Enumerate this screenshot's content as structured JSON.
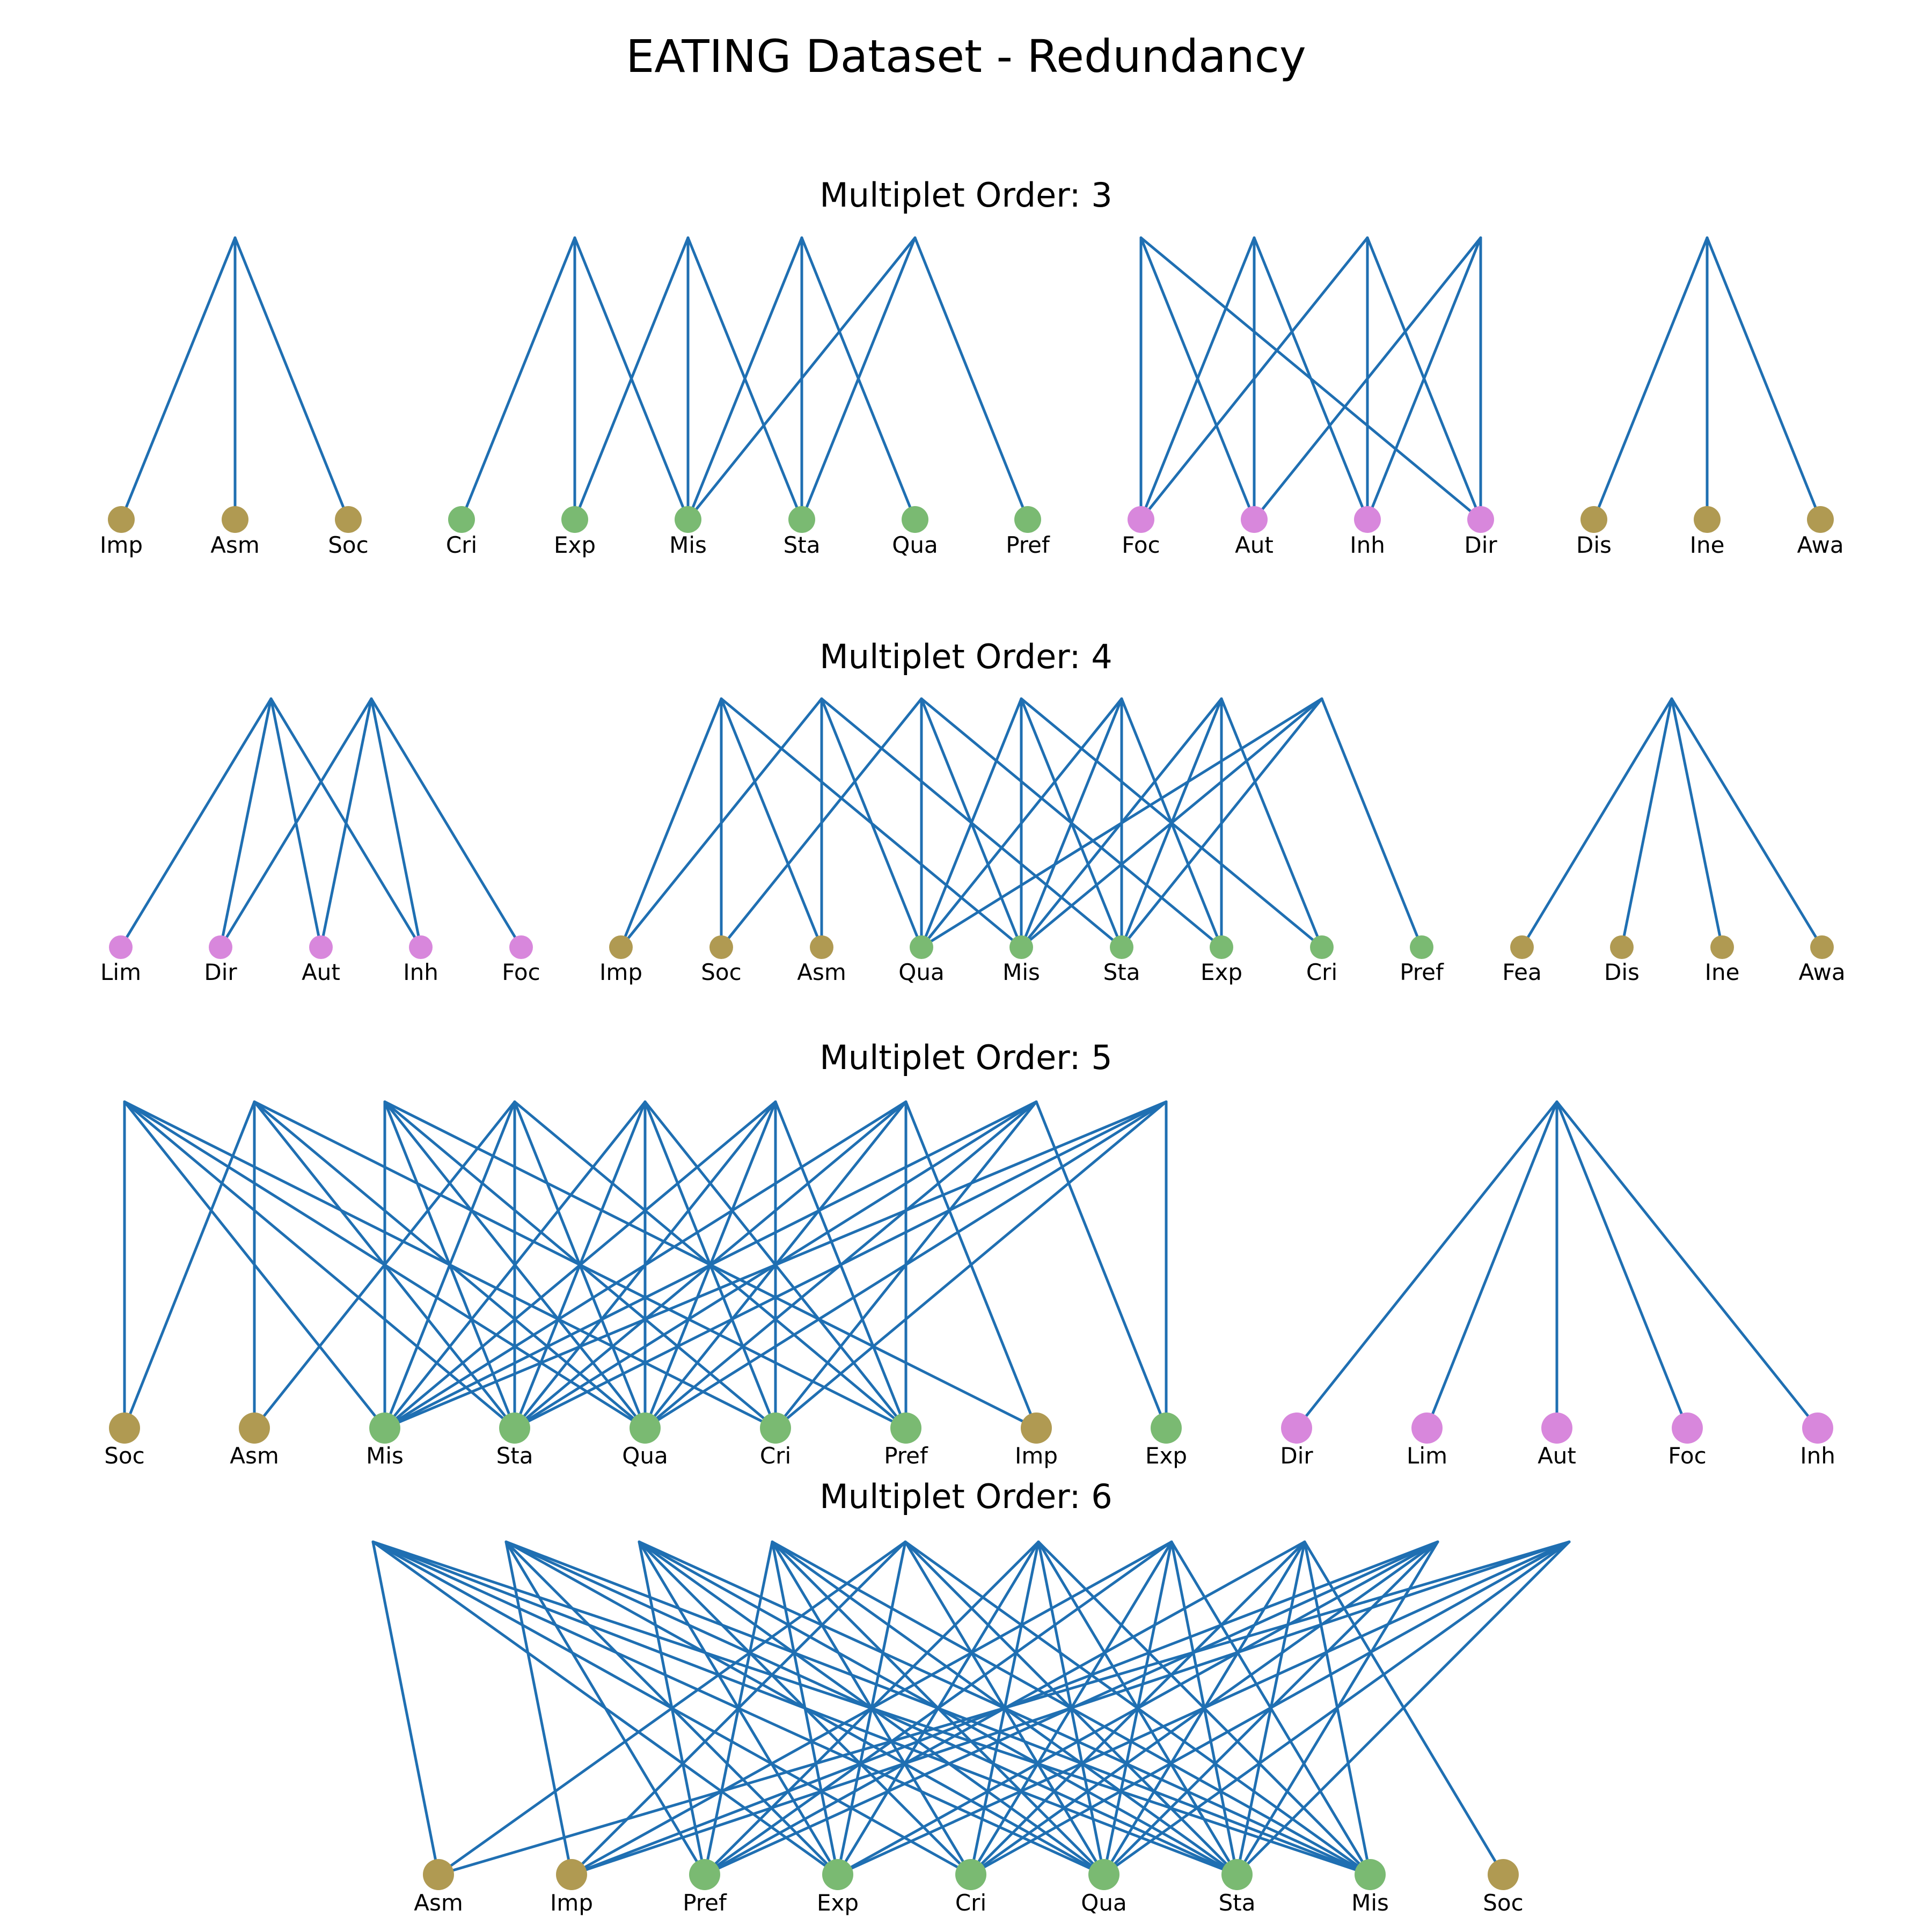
{
  "title": "EATING Dataset - Redundancy",
  "colors": {
    "edge": "#1f6fb2",
    "gold": "#b09a52",
    "green": "#7aba72",
    "pink": "#d887dc"
  },
  "panels": [
    {
      "title": "Multiplet Order: 3",
      "node_color_groups": [
        "gold",
        "gold",
        "gold",
        "green",
        "green",
        "green",
        "green",
        "green",
        "green",
        "pink",
        "pink",
        "pink",
        "pink",
        "gold",
        "gold",
        "gold"
      ],
      "nodes": [
        "Imp",
        "Asm",
        "Soc",
        "Cri",
        "Exp",
        "Mis",
        "Sta",
        "Qua",
        "Pref",
        "Foc",
        "Aut",
        "Inh",
        "Dir",
        "Dis",
        "Ine",
        "Awa"
      ],
      "multiplets": [
        [
          "Imp",
          "Asm",
          "Soc"
        ],
        [
          "Cri",
          "Exp",
          "Mis"
        ],
        [
          "Exp",
          "Mis",
          "Sta"
        ],
        [
          "Mis",
          "Sta",
          "Qua"
        ],
        [
          "Mis",
          "Sta",
          "Pref"
        ],
        [
          "Foc",
          "Aut",
          "Dir"
        ],
        [
          "Foc",
          "Aut",
          "Inh"
        ],
        [
          "Foc",
          "Inh",
          "Dir"
        ],
        [
          "Aut",
          "Inh",
          "Dir"
        ],
        [
          "Dis",
          "Ine",
          "Awa"
        ]
      ]
    },
    {
      "title": "Multiplet Order: 4",
      "node_color_groups": [
        "pink",
        "pink",
        "pink",
        "pink",
        "pink",
        "gold",
        "gold",
        "gold",
        "green",
        "green",
        "green",
        "green",
        "green",
        "green",
        "gold",
        "gold",
        "gold",
        "gold"
      ],
      "nodes": [
        "Lim",
        "Dir",
        "Aut",
        "Inh",
        "Foc",
        "Imp",
        "Soc",
        "Asm",
        "Qua",
        "Mis",
        "Sta",
        "Exp",
        "Cri",
        "Pref",
        "Fea",
        "Dis",
        "Ine",
        "Awa"
      ],
      "multiplets": [
        [
          "Lim",
          "Dir",
          "Aut",
          "Inh"
        ],
        [
          "Dir",
          "Aut",
          "Inh",
          "Foc"
        ],
        [
          "Imp",
          "Soc",
          "Asm",
          "Mis"
        ],
        [
          "Imp",
          "Asm",
          "Qua",
          "Sta"
        ],
        [
          "Soc",
          "Qua",
          "Mis",
          "Exp"
        ],
        [
          "Qua",
          "Mis",
          "Sta",
          "Cri"
        ],
        [
          "Qua",
          "Mis",
          "Sta",
          "Exp"
        ],
        [
          "Mis",
          "Sta",
          "Exp",
          "Cri"
        ],
        [
          "Qua",
          "Mis",
          "Sta",
          "Pref"
        ],
        [
          "Fea",
          "Dis",
          "Ine",
          "Awa"
        ]
      ]
    },
    {
      "title": "Multiplet Order: 5",
      "node_color_groups": [
        "gold",
        "gold",
        "green",
        "green",
        "green",
        "green",
        "green",
        "gold",
        "green",
        "pink",
        "pink",
        "pink",
        "pink",
        "pink"
      ],
      "nodes": [
        "Soc",
        "Asm",
        "Mis",
        "Sta",
        "Qua",
        "Cri",
        "Pref",
        "Imp",
        "Exp",
        "Dir",
        "Lim",
        "Aut",
        "Foc",
        "Inh"
      ],
      "multiplets": [
        [
          "Soc",
          "Mis",
          "Sta",
          "Qua",
          "Cri"
        ],
        [
          "Soc",
          "Asm",
          "Sta",
          "Qua",
          "Pref"
        ],
        [
          "Mis",
          "Sta",
          "Qua",
          "Cri",
          "Imp"
        ],
        [
          "Asm",
          "Mis",
          "Sta",
          "Qua",
          "Pref"
        ],
        [
          "Mis",
          "Sta",
          "Qua",
          "Cri",
          "Pref"
        ],
        [
          "Mis",
          "Sta",
          "Qua",
          "Cri",
          "Pref"
        ],
        [
          "Mis",
          "Sta",
          "Qua",
          "Pref",
          "Imp"
        ],
        [
          "Mis",
          "Sta",
          "Qua",
          "Cri",
          "Exp"
        ],
        [
          "Mis",
          "Sta",
          "Qua",
          "Cri",
          "Exp"
        ],
        [
          "Dir",
          "Lim",
          "Aut",
          "Foc",
          "Inh"
        ]
      ]
    },
    {
      "title": "Multiplet Order: 6",
      "node_color_groups": [
        "gold",
        "gold",
        "green",
        "green",
        "green",
        "green",
        "green",
        "green",
        "gold"
      ],
      "nodes": [
        "Asm",
        "Imp",
        "Pref",
        "Exp",
        "Cri",
        "Qua",
        "Sta",
        "Mis",
        "Soc"
      ],
      "multiplets": [
        [
          "Asm",
          "Qua",
          "Sta",
          "Mis",
          "Cri",
          "Exp"
        ],
        [
          "Imp",
          "Pref",
          "Exp",
          "Qua",
          "Sta",
          "Mis"
        ],
        [
          "Pref",
          "Exp",
          "Cri",
          "Qua",
          "Sta",
          "Mis"
        ],
        [
          "Pref",
          "Exp",
          "Cri",
          "Qua",
          "Sta",
          "Mis"
        ],
        [
          "Asm",
          "Imp",
          "Exp",
          "Qua",
          "Sta",
          "Mis"
        ],
        [
          "Pref",
          "Exp",
          "Cri",
          "Qua",
          "Sta",
          "Mis"
        ],
        [
          "Imp",
          "Pref",
          "Cri",
          "Qua",
          "Sta",
          "Mis"
        ],
        [
          "Pref",
          "Cri",
          "Qua",
          "Sta",
          "Mis",
          "Soc"
        ],
        [
          "Imp",
          "Pref",
          "Exp",
          "Cri",
          "Qua",
          "Sta"
        ],
        [
          "Asm",
          "Imp",
          "Exp",
          "Cri",
          "Qua",
          "Sta"
        ]
      ]
    }
  ]
}
